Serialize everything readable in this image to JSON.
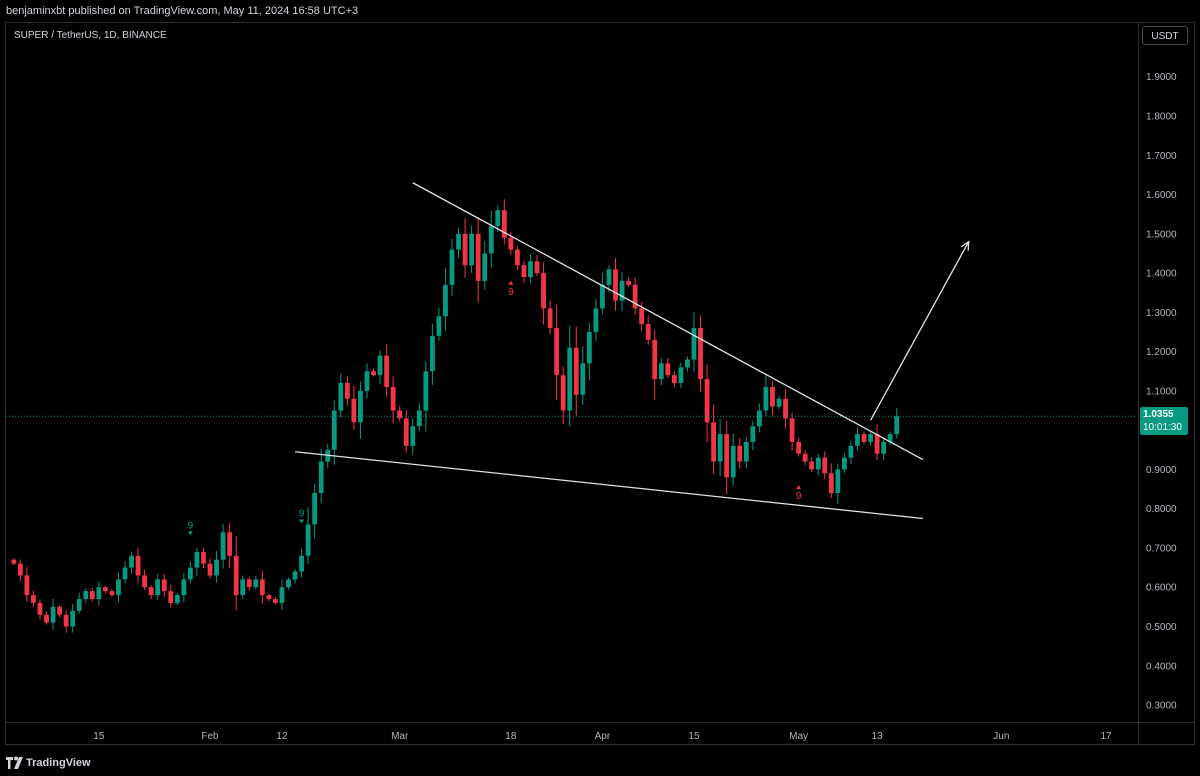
{
  "header": {
    "published": "benjaminxbt published on TradingView.com, May 11, 2024 16:58 UTC+3",
    "symbol": "SUPER / TetherUS, 1D, BINANCE",
    "currency_button": "USDT"
  },
  "footer": {
    "brand": "TradingView"
  },
  "last_price": {
    "value": "1.0355",
    "countdown": "10:01:30"
  },
  "colors": {
    "up": "#089981",
    "down": "#f23645",
    "background": "#000000",
    "trendline": "#e0e3eb"
  },
  "chart_data": {
    "type": "candlestick",
    "title": "SUPER / TetherUS, 1D, BINANCE",
    "ylim": [
      0.25,
      1.98
    ],
    "y_ticks": [
      "1.9000",
      "1.8000",
      "1.7000",
      "1.6000",
      "1.5000",
      "1.4000",
      "1.3000",
      "1.2000",
      "1.1000",
      "1.0000",
      "0.9000",
      "0.8000",
      "0.7000",
      "0.6000",
      "0.5000",
      "0.4000",
      "0.3000"
    ],
    "x_ticks": [
      {
        "label": "15",
        "date": "2024-01-15"
      },
      {
        "label": "Feb",
        "date": "2024-02-01"
      },
      {
        "label": "12",
        "date": "2024-02-12"
      },
      {
        "label": "Mar",
        "date": "2024-03-01"
      },
      {
        "label": "18",
        "date": "2024-03-18"
      },
      {
        "label": "Apr",
        "date": "2024-04-01"
      },
      {
        "label": "15",
        "date": "2024-04-15"
      },
      {
        "label": "May",
        "date": "2024-05-01"
      },
      {
        "label": "13",
        "date": "2024-05-13"
      },
      {
        "label": "Jun",
        "date": "2024-06-01"
      },
      {
        "label": "17",
        "date": "2024-06-17"
      }
    ],
    "start_date": "2024-01-02",
    "closes": [
      0.66,
      0.63,
      0.58,
      0.56,
      0.53,
      0.51,
      0.55,
      0.53,
      0.5,
      0.54,
      0.57,
      0.59,
      0.57,
      0.6,
      0.59,
      0.58,
      0.62,
      0.65,
      0.68,
      0.63,
      0.6,
      0.58,
      0.62,
      0.59,
      0.56,
      0.58,
      0.62,
      0.65,
      0.69,
      0.66,
      0.63,
      0.67,
      0.74,
      0.68,
      0.58,
      0.62,
      0.6,
      0.62,
      0.58,
      0.57,
      0.56,
      0.6,
      0.62,
      0.64,
      0.68,
      0.76,
      0.84,
      0.92,
      0.95,
      1.05,
      1.12,
      1.08,
      1.02,
      1.1,
      1.15,
      1.14,
      1.19,
      1.11,
      1.05,
      1.03,
      0.96,
      1.01,
      1.05,
      1.15,
      1.24,
      1.29,
      1.37,
      1.46,
      1.5,
      1.42,
      1.5,
      1.38,
      1.45,
      1.52,
      1.56,
      1.49,
      1.46,
      1.42,
      1.39,
      1.43,
      1.4,
      1.31,
      1.26,
      1.14,
      1.05,
      1.21,
      1.09,
      1.17,
      1.25,
      1.31,
      1.37,
      1.41,
      1.33,
      1.38,
      1.37,
      1.31,
      1.27,
      1.23,
      1.13,
      1.17,
      1.14,
      1.12,
      1.16,
      1.18,
      1.26,
      1.13,
      1.02,
      0.92,
      0.99,
      0.88,
      0.96,
      0.92,
      0.97,
      1.01,
      1.05,
      1.11,
      1.06,
      1.08,
      1.03,
      0.97,
      0.94,
      0.92,
      0.9,
      0.93,
      0.89,
      0.84,
      0.9,
      0.93,
      0.96,
      0.99,
      0.97,
      0.99,
      0.94,
      0.97,
      0.99,
      1.0355
    ],
    "annotations": [
      {
        "text": "9",
        "date": "2024-01-29",
        "near": "high",
        "color": "#089981"
      },
      {
        "text": "9",
        "date": "2024-02-15",
        "near": "high",
        "color": "#089981"
      },
      {
        "text": "9",
        "date": "2024-03-18",
        "near": "low",
        "color": "#f23645"
      },
      {
        "text": "9",
        "date": "2024-05-01",
        "near": "low",
        "color": "#f23645"
      }
    ],
    "drawings": {
      "upper_trendline": {
        "from": {
          "date": "2024-03-03",
          "price": 1.63
        },
        "to": {
          "date": "2024-05-20",
          "price": 0.925
        }
      },
      "lower_trendline": {
        "from": {
          "date": "2024-02-14",
          "price": 0.945
        },
        "to": {
          "date": "2024-05-20",
          "price": 0.775
        }
      },
      "arrow": {
        "from": {
          "date": "2024-05-12",
          "price": 1.025
        },
        "to": {
          "date": "2024-05-27",
          "price": 1.48
        }
      }
    },
    "grid": false,
    "legend": "none"
  }
}
